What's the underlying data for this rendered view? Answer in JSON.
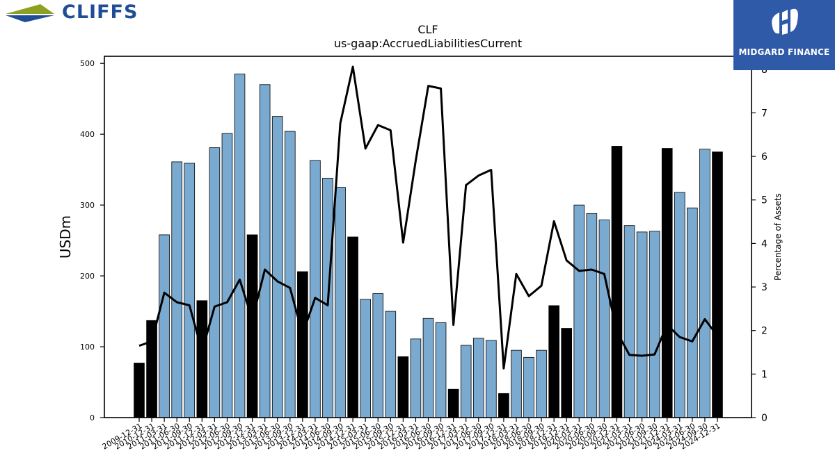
{
  "brand": {
    "company_logo_text": "CLIFFS",
    "publisher_logo_text": "MIDGARD FINANCE"
  },
  "colors": {
    "bar_normal": "#7aaad0",
    "bar_highlight": "#000000",
    "line": "#000000",
    "cliffs_blue": "#1f4e96",
    "cliffs_green": "#8ca022",
    "midgard_bg": "#2f5aa8"
  },
  "chart_data": {
    "type": "bar",
    "title": "CLF",
    "subtitle": "us-gaap:AccruedLiabilitiesCurrent",
    "ylabel": "USDm",
    "y2label": "Percentage of Assets",
    "ylim": [
      0,
      510
    ],
    "y2lim": [
      0,
      8.3
    ],
    "yticks": [
      0,
      100,
      200,
      300,
      400,
      500
    ],
    "y2ticks": [
      0,
      1,
      2,
      3,
      4,
      5,
      6,
      7,
      8
    ],
    "grid": false,
    "categories": [
      "2009-12-31",
      "2010-12-31",
      "2011-03-31",
      "2011-06-30",
      "2011-09-30",
      "2011-12-31",
      "2012-03-31",
      "2012-06-30",
      "2012-09-30",
      "2012-12-31",
      "2013-03-31",
      "2013-06-30",
      "2013-09-30",
      "2013-12-31",
      "2014-03-31",
      "2014-06-30",
      "2014-09-30",
      "2014-12-31",
      "2015-03-31",
      "2015-06-30",
      "2015-09-30",
      "2015-12-31",
      "2016-03-31",
      "2016-06-30",
      "2016-09-30",
      "2016-12-31",
      "2017-03-31",
      "2017-06-30",
      "2017-09-30",
      "2017-12-31",
      "2018-03-31",
      "2018-06-30",
      "2018-09-30",
      "2018-12-31",
      "2019-12-31",
      "2020-03-31",
      "2020-06-30",
      "2020-09-30",
      "2020-12-31",
      "2021-03-31",
      "2021-06-30",
      "2021-09-30",
      "2021-12-31",
      "2024-03-31",
      "2024-06-30",
      "2024-09-30",
      "2024-12-31"
    ],
    "series": [
      {
        "type": "bar",
        "axis": "left",
        "values": [
          77,
          137,
          258,
          361,
          359,
          165,
          381,
          401,
          485,
          258,
          470,
          425,
          404,
          206,
          363,
          338,
          325,
          255,
          167,
          175,
          150,
          86,
          111,
          140,
          134,
          40,
          102,
          112,
          109,
          34,
          95,
          85,
          95,
          158,
          126,
          300,
          288,
          279,
          383,
          271,
          262,
          263,
          380,
          318,
          296,
          379,
          375
        ],
        "highlight": [
          true,
          true,
          false,
          false,
          false,
          true,
          false,
          false,
          false,
          true,
          false,
          false,
          false,
          true,
          false,
          false,
          false,
          true,
          false,
          false,
          false,
          true,
          false,
          false,
          false,
          true,
          false,
          false,
          false,
          true,
          false,
          false,
          false,
          true,
          true,
          false,
          false,
          false,
          true,
          false,
          false,
          false,
          true,
          false,
          false,
          false,
          true
        ]
      },
      {
        "type": "line",
        "axis": "right",
        "values": [
          1.65,
          1.75,
          2.87,
          2.65,
          2.58,
          1.52,
          2.55,
          2.65,
          3.17,
          2.25,
          3.4,
          3.13,
          2.98,
          1.92,
          2.75,
          2.58,
          6.76,
          8.06,
          6.18,
          6.72,
          6.6,
          4.02,
          5.9,
          7.62,
          7.56,
          2.13,
          5.34,
          5.56,
          5.69,
          1.13,
          3.3,
          2.79,
          3.03,
          4.51,
          3.61,
          3.37,
          3.4,
          3.3,
          1.97,
          1.44,
          1.42,
          1.45,
          2.13,
          1.85,
          1.75,
          2.26,
          1.88
        ]
      }
    ]
  }
}
